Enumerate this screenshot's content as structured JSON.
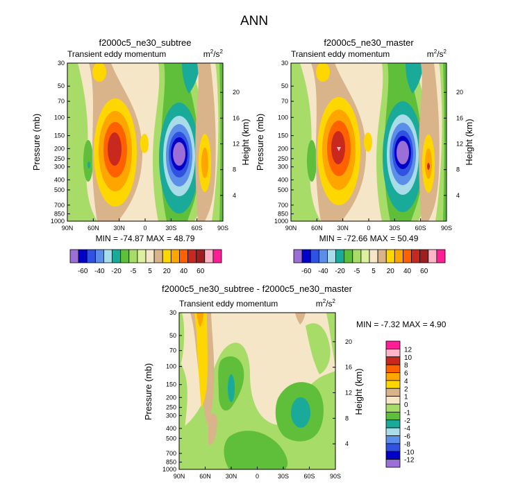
{
  "title": "ANN",
  "colors": {
    "main_levels": [
      "#9b6fd6",
      "#0000c8",
      "#2f52e0",
      "#5b8ee8",
      "#a8dce8",
      "#1aaa9a",
      "#5fbf3a",
      "#a8dc68",
      "#dcf0a0",
      "#f5e6c8",
      "#d9b48a",
      "#ffd700",
      "#ffa500",
      "#ff6000",
      "#c8281e",
      "#a01e1e",
      "#ffb4c8",
      "#ff1e96"
    ],
    "diff_levels": [
      "#9b6fd6",
      "#0000c8",
      "#2f52e0",
      "#5b8ee8",
      "#a8dce8",
      "#1aaa9a",
      "#5fbf3a",
      "#a8dc68",
      "#f5e6c8",
      "#d9b48a",
      "#ffd700",
      "#ffa500",
      "#ff6000",
      "#c8281e",
      "#ffb4c8",
      "#ff1e96"
    ]
  },
  "chart_data": [
    {
      "type": "heatmap",
      "title": "f2000c5_ne30_subtree",
      "subtitle_left": "Transient eddy momentum",
      "units": "m²/s²",
      "units_base": "m",
      "units_sup1": "2",
      "units_mid": "/s",
      "units_sup2": "2",
      "xlabel": "",
      "ylabel": "Pressure (mb)",
      "ylabel_right": "Height (km)",
      "x_ticks": [
        "90N",
        "60N",
        "30N",
        "0",
        "30S",
        "60S",
        "90S"
      ],
      "x_range": [
        90,
        -90
      ],
      "y_ticks": [
        "30",
        "50",
        "70",
        "100",
        "150",
        "200",
        "250",
        "300",
        "400",
        "500",
        "700",
        "850",
        "1000"
      ],
      "y_tick_values": [
        30,
        50,
        70,
        100,
        150,
        200,
        250,
        300,
        400,
        500,
        700,
        850,
        1000
      ],
      "y_range": [
        1000,
        30
      ],
      "y_right_ticks": [
        "20",
        "16",
        "12",
        "8",
        "4"
      ],
      "min_max_text": "MIN = -74.87  MAX =  48.79",
      "colorbar_labels": [
        "-60",
        "-40",
        "-20",
        "-5",
        "5",
        "20",
        "40",
        "60"
      ],
      "colorbar_levels": [
        -70,
        -60,
        -50,
        -40,
        -30,
        -20,
        -10,
        -5,
        -1,
        1,
        5,
        10,
        20,
        30,
        40,
        50,
        60
      ],
      "cells": [
        {
          "lat": 90,
          "p": 30,
          "color": "#f5e6c8"
        }
      ],
      "features": [
        {
          "lat_center": 32,
          "p_center": 215,
          "value": 48.79,
          "sign": "positive"
        },
        {
          "lat_center": -32,
          "p_center": 230,
          "value": -74.87,
          "sign": "negative"
        },
        {
          "lat_center": 63,
          "p_center": 270,
          "value": -20,
          "sign": "negative"
        },
        {
          "lat_center": -61,
          "p_center": 240,
          "value": 20,
          "sign": "positive"
        }
      ]
    },
    {
      "type": "heatmap",
      "title": "f2000c5_ne30_master",
      "subtitle_left": "Transient eddy momentum",
      "units": "m²/s²",
      "units_base": "m",
      "units_sup1": "2",
      "units_mid": "/s",
      "units_sup2": "2",
      "xlabel": "",
      "ylabel": "Pressure (mb)",
      "ylabel_right": "Height (km)",
      "x_ticks": [
        "90N",
        "60N",
        "30N",
        "0",
        "30S",
        "60S",
        "90S"
      ],
      "x_range": [
        90,
        -90
      ],
      "y_ticks": [
        "30",
        "50",
        "70",
        "100",
        "150",
        "200",
        "250",
        "300",
        "400",
        "500",
        "700",
        "850",
        "1000"
      ],
      "y_tick_values": [
        30,
        50,
        70,
        100,
        150,
        200,
        250,
        300,
        400,
        500,
        700,
        850,
        1000
      ],
      "y_range": [
        1000,
        30
      ],
      "y_right_ticks": [
        "20",
        "16",
        "12",
        "8",
        "4"
      ],
      "min_max_text": "MIN = -72.66  MAX =  50.49",
      "colorbar_labels": [
        "-60",
        "-40",
        "-20",
        "-5",
        "5",
        "20",
        "40",
        "60"
      ],
      "colorbar_levels": [
        -70,
        -60,
        -50,
        -40,
        -30,
        -20,
        -10,
        -5,
        -1,
        1,
        5,
        10,
        20,
        30,
        40,
        50,
        60
      ],
      "features": [
        {
          "lat_center": 33,
          "p_center": 210,
          "value": 50.49,
          "sign": "positive"
        },
        {
          "lat_center": -32,
          "p_center": 225,
          "value": -72.66,
          "sign": "negative"
        },
        {
          "lat_center": -62,
          "p_center": 250,
          "value": 30,
          "sign": "positive"
        }
      ]
    },
    {
      "type": "heatmap",
      "title": "f2000c5_ne30_subtree - f2000c5_ne30_master",
      "subtitle_left": "Transient eddy momentum",
      "units": "m²/s²",
      "units_base": "m",
      "units_sup1": "2",
      "units_mid": "/s",
      "units_sup2": "2",
      "xlabel": "",
      "ylabel": "Pressure (mb)",
      "ylabel_right": "Height (km)",
      "x_ticks": [
        "90N",
        "60N",
        "30N",
        "0",
        "30S",
        "60S",
        "90S"
      ],
      "x_range": [
        90,
        -90
      ],
      "y_ticks": [
        "30",
        "50",
        "70",
        "100",
        "150",
        "200",
        "250",
        "300",
        "400",
        "500",
        "700",
        "850",
        "1000"
      ],
      "y_tick_values": [
        30,
        50,
        70,
        100,
        150,
        200,
        250,
        300,
        400,
        500,
        700,
        850,
        1000
      ],
      "y_range": [
        1000,
        30
      ],
      "y_right_ticks": [
        "20",
        "16",
        "12",
        "8",
        "4"
      ],
      "min_max_text": "MIN =  -7.32  MAX =   4.90",
      "colorbar_labels": [
        "12",
        "10",
        "8",
        "6",
        "4",
        "2",
        "1",
        "0",
        "-1",
        "-2",
        "-4",
        "-6",
        "-8",
        "-10",
        "-12"
      ],
      "colorbar_levels": [
        -12,
        -10,
        -8,
        -6,
        -4,
        -2,
        -1,
        0,
        1,
        2,
        4,
        6,
        8,
        10,
        12
      ],
      "features": [
        {
          "lat_center": 66,
          "p_center": 100,
          "value": 4.9,
          "sign": "positive"
        },
        {
          "lat_center": -48,
          "p_center": 270,
          "value": -7.32,
          "sign": "negative"
        }
      ]
    }
  ]
}
